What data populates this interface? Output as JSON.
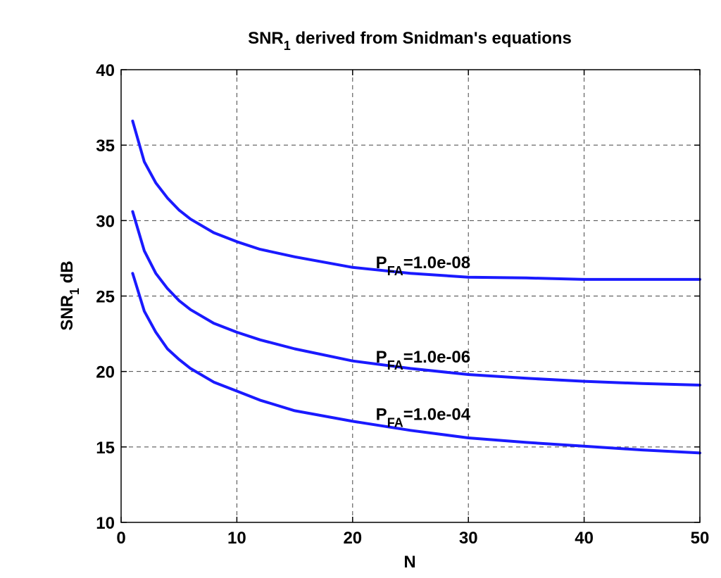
{
  "chart_data": {
    "type": "line",
    "title": "derived from Snidman's equations",
    "title_prefix": "SNR",
    "title_subscript": "1",
    "xlabel": "N",
    "ylabel_prefix": "SNR",
    "ylabel_subscript": "1",
    "ylabel_suffix": " dB",
    "xlim": [
      0,
      50
    ],
    "ylim": [
      10,
      40
    ],
    "xticks": [
      0,
      10,
      20,
      30,
      40,
      50
    ],
    "yticks": [
      10,
      15,
      20,
      25,
      30,
      35,
      40
    ],
    "grid": true,
    "line_color": "#1a1aff",
    "series": [
      {
        "name": "P_FA=1.0e-08",
        "label_prefix": "P",
        "label_subscript": "FA",
        "label_suffix": "=1.0e-08",
        "label_at": [
          22,
          26.85
        ],
        "x": [
          1,
          2,
          3,
          4,
          5,
          6,
          8,
          10,
          12,
          15,
          20,
          25,
          30,
          35,
          40,
          45,
          50
        ],
        "values": [
          36.6,
          33.9,
          32.5,
          31.5,
          30.7,
          30.1,
          29.2,
          28.6,
          28.1,
          27.6,
          26.9,
          26.5,
          26.25,
          26.2,
          26.1,
          26.1,
          26.1
        ]
      },
      {
        "name": "P_FA=1.0e-06",
        "label_prefix": "P",
        "label_subscript": "FA",
        "label_suffix": "=1.0e-06",
        "label_at": [
          22,
          20.6
        ],
        "x": [
          1,
          2,
          3,
          4,
          5,
          6,
          8,
          10,
          12,
          15,
          20,
          25,
          30,
          35,
          40,
          45,
          50
        ],
        "values": [
          30.6,
          28.0,
          26.5,
          25.5,
          24.7,
          24.1,
          23.2,
          22.6,
          22.1,
          21.5,
          20.7,
          20.2,
          19.8,
          19.55,
          19.35,
          19.2,
          19.1
        ]
      },
      {
        "name": "P_FA=1.0e-04",
        "label_prefix": "P",
        "label_subscript": "FA",
        "label_suffix": "=1.0e-04",
        "label_at": [
          22,
          16.8
        ],
        "x": [
          1,
          2,
          3,
          4,
          5,
          6,
          8,
          10,
          12,
          15,
          20,
          25,
          30,
          35,
          40,
          45,
          50
        ],
        "values": [
          26.5,
          24.0,
          22.6,
          21.5,
          20.8,
          20.2,
          19.3,
          18.7,
          18.1,
          17.4,
          16.7,
          16.1,
          15.6,
          15.3,
          15.05,
          14.8,
          14.6
        ]
      }
    ]
  }
}
